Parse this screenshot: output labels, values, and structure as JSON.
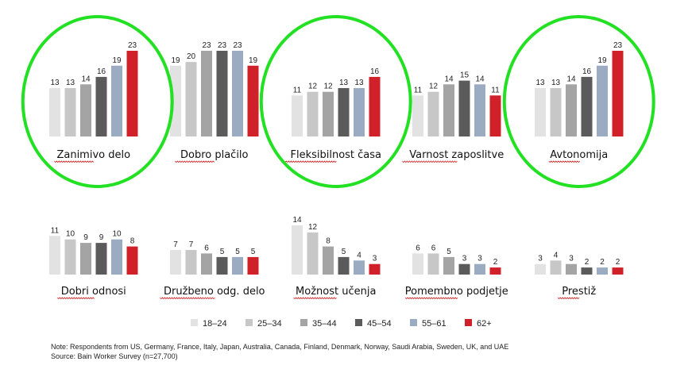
{
  "colors": [
    "#e2e2e2",
    "#c7c7c7",
    "#a4a4a4",
    "#5b5b5b",
    "#9aabc2",
    "#d0202a"
  ],
  "highlight_color": "#22e022",
  "chart_data": [
    {
      "type": "bar",
      "title": "Zanimivo delo",
      "categories": [
        "18–24",
        "25–34",
        "35–44",
        "45–54",
        "55–61",
        "62+"
      ],
      "values": [
        13,
        13,
        14,
        16,
        19,
        23
      ],
      "highlighted": true
    },
    {
      "type": "bar",
      "title": "Dobro plačilo",
      "categories": [
        "18–24",
        "25–34",
        "35–44",
        "45–54",
        "55–61",
        "62+"
      ],
      "values": [
        19,
        20,
        23,
        23,
        23,
        19
      ],
      "highlighted": false
    },
    {
      "type": "bar",
      "title": "Fleksibilnost časa",
      "categories": [
        "18–24",
        "25–34",
        "35–44",
        "45–54",
        "55–61",
        "62+"
      ],
      "values": [
        11,
        12,
        12,
        13,
        13,
        16
      ],
      "highlighted": true
    },
    {
      "type": "bar",
      "title": "Varnost zaposlitve",
      "categories": [
        "18–24",
        "25–34",
        "35–44",
        "45–54",
        "55–61",
        "62+"
      ],
      "values": [
        11,
        12,
        14,
        15,
        14,
        11
      ],
      "highlighted": false
    },
    {
      "type": "bar",
      "title": "Avtonomija",
      "categories": [
        "18–24",
        "25–34",
        "35–44",
        "45–54",
        "55–61",
        "62+"
      ],
      "values": [
        13,
        13,
        14,
        16,
        19,
        23
      ],
      "highlighted": true
    },
    {
      "type": "bar",
      "title": "Dobri odnosi",
      "categories": [
        "18–24",
        "25–34",
        "35–44",
        "45–54",
        "55–61",
        "62+"
      ],
      "values": [
        11,
        10,
        9,
        9,
        10,
        8
      ],
      "highlighted": false
    },
    {
      "type": "bar",
      "title": "Družbeno odg. delo",
      "categories": [
        "18–24",
        "25–34",
        "35–44",
        "45–54",
        "55–61",
        "62+"
      ],
      "values": [
        7,
        7,
        6,
        5,
        5,
        5
      ],
      "highlighted": false
    },
    {
      "type": "bar",
      "title": "Možnost učenja",
      "categories": [
        "18–24",
        "25–34",
        "35–44",
        "45–54",
        "55–61",
        "62+"
      ],
      "values": [
        14,
        12,
        8,
        5,
        4,
        3
      ],
      "highlighted": false
    },
    {
      "type": "bar",
      "title": "Pomembno podjetje",
      "categories": [
        "18–24",
        "25–34",
        "35–44",
        "45–54",
        "55–61",
        "62+"
      ],
      "values": [
        6,
        6,
        5,
        3,
        3,
        2
      ],
      "highlighted": false
    },
    {
      "type": "bar",
      "title": "Prestiž",
      "categories": [
        "18–24",
        "25–34",
        "35–44",
        "45–54",
        "55–61",
        "62+"
      ],
      "values": [
        3,
        4,
        3,
        2,
        2,
        2
      ],
      "highlighted": false
    }
  ],
  "legend": [
    "18–24",
    "25–34",
    "35–44",
    "45–54",
    "55–61",
    "62+"
  ],
  "note": "Note: Respondents from US, Germany, France, Italy, Japan, Australia, Canada, Finland, Denmark, Norway, Saudi Arabia, Sweden, UK, and UAE",
  "source": "Source: Bain Worker Survey (n=27,700)"
}
